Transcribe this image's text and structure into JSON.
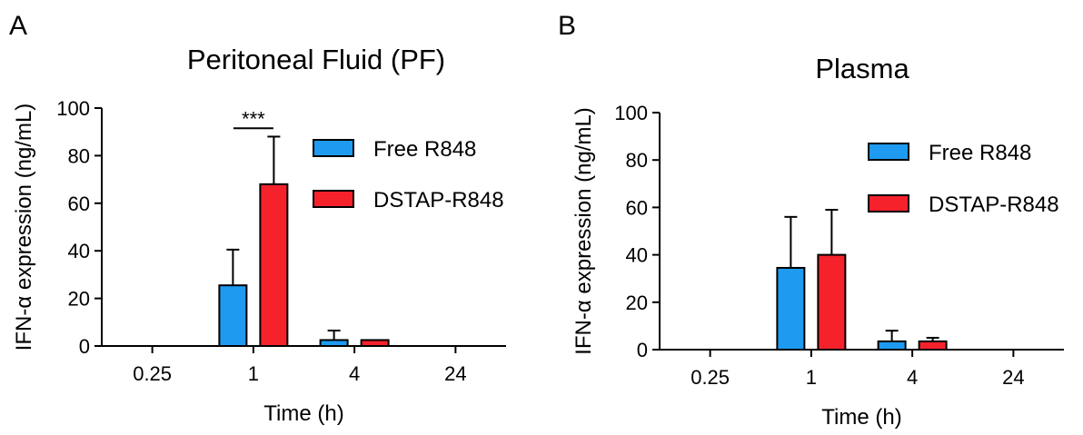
{
  "chart_data": [
    {
      "type": "bar",
      "panel_label": "A",
      "title": "Peritoneal Fluid (PF)",
      "xlabel": "Time (h)",
      "ylabel": "IFN-α expression (ng/mL)",
      "categories": [
        "0.25",
        "1",
        "4",
        "24"
      ],
      "ylim": [
        0,
        100
      ],
      "yticks": [
        "0",
        "20",
        "40",
        "60",
        "80",
        "100"
      ],
      "series": [
        {
          "name": "Free R848",
          "color": "#1E9BF0",
          "values": [
            0,
            25.5,
            2.5,
            0
          ],
          "errors": [
            0,
            15,
            4,
            0
          ]
        },
        {
          "name": "DSTAP-R848",
          "color": "#F5222B",
          "values": [
            0,
            68,
            2.5,
            0
          ],
          "errors": [
            0,
            20,
            0,
            0
          ]
        }
      ],
      "annotations": [
        {
          "text": "***",
          "category": "1"
        }
      ],
      "legend": "top-right"
    },
    {
      "type": "bar",
      "panel_label": "B",
      "title": "Plasma",
      "xlabel": "Time (h)",
      "ylabel": "IFN-α expression (ng/mL)",
      "categories": [
        "0.25",
        "1",
        "4",
        "24"
      ],
      "ylim": [
        0,
        100
      ],
      "yticks": [
        "0",
        "20",
        "40",
        "60",
        "80",
        "100"
      ],
      "series": [
        {
          "name": "Free R848",
          "color": "#1E9BF0",
          "values": [
            0,
            34.5,
            3.5,
            0
          ],
          "errors": [
            0,
            21.5,
            4.5,
            0
          ]
        },
        {
          "name": "DSTAP-R848",
          "color": "#F5222B",
          "values": [
            0,
            40,
            3.5,
            0
          ],
          "errors": [
            0,
            19,
            1.5,
            0
          ]
        }
      ],
      "annotations": [],
      "legend": "top-right"
    }
  ]
}
